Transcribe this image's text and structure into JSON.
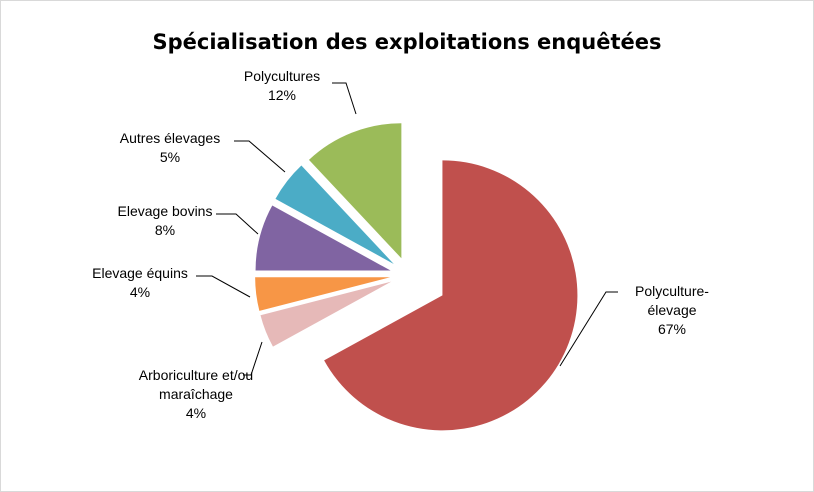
{
  "chart_data": {
    "type": "pie",
    "title": "Spécialisation des exploitations enquêtées",
    "categories": [
      "Polyculture-élevage",
      "Arboriculture et/ou maraîchage",
      "Elevage équins",
      "Elevage bovins",
      "Autres élevages",
      "Polycultures"
    ],
    "values": [
      67,
      4,
      4,
      8,
      5,
      12
    ],
    "value_labels": [
      "67%",
      "4%",
      "4%",
      "8%",
      "5%",
      "12%"
    ],
    "colors": [
      "#c0504d",
      "#e6b9b8",
      "#f79646",
      "#8064a2",
      "#4bacc6",
      "#9bbb59"
    ]
  }
}
